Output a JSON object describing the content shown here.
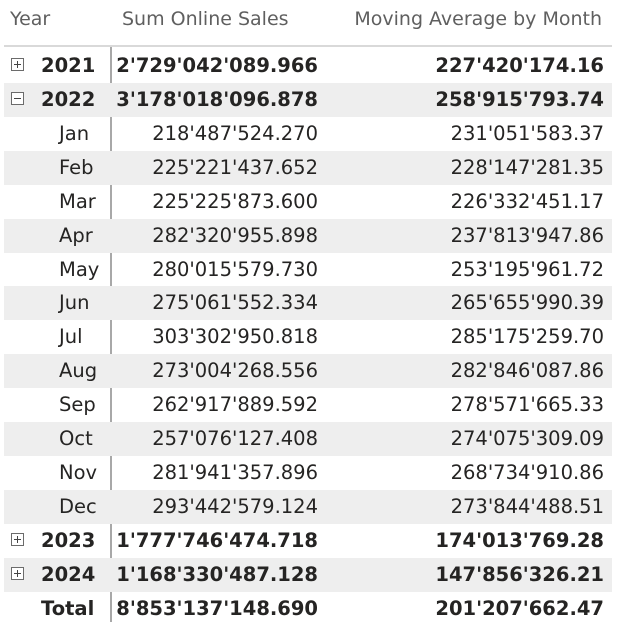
{
  "header": {
    "year": "Year",
    "sum": "Sum Online Sales",
    "moving": "Moving Average by Month"
  },
  "rows": [
    {
      "label": "2021",
      "sum": "2'729'042'089.966",
      "ma": "227'420'174.16"
    },
    {
      "label": "2022",
      "sum": "3'178'018'096.878",
      "ma": "258'915'793.74"
    },
    {
      "label": "Jan",
      "sum": "218'487'524.270",
      "ma": "231'051'583.37"
    },
    {
      "label": "Feb",
      "sum": "225'221'437.652",
      "ma": "228'147'281.35"
    },
    {
      "label": "Mar",
      "sum": "225'225'873.600",
      "ma": "226'332'451.17"
    },
    {
      "label": "Apr",
      "sum": "282'320'955.898",
      "ma": "237'813'947.86"
    },
    {
      "label": "May",
      "sum": "280'015'579.730",
      "ma": "253'195'961.72"
    },
    {
      "label": "Jun",
      "sum": "275'061'552.334",
      "ma": "265'655'990.39"
    },
    {
      "label": "Jul",
      "sum": "303'302'950.818",
      "ma": "285'175'259.70"
    },
    {
      "label": "Aug",
      "sum": "273'004'268.556",
      "ma": "282'846'087.86"
    },
    {
      "label": "Sep",
      "sum": "262'917'889.592",
      "ma": "278'571'665.33"
    },
    {
      "label": "Oct",
      "sum": "257'076'127.408",
      "ma": "274'075'309.09"
    },
    {
      "label": "Nov",
      "sum": "281'941'357.896",
      "ma": "268'734'910.86"
    },
    {
      "label": "Dec",
      "sum": "293'442'579.124",
      "ma": "273'844'488.51"
    },
    {
      "label": "2023",
      "sum": "1'777'746'474.718",
      "ma": "174'013'769.28"
    },
    {
      "label": "2024",
      "sum": "1'168'330'487.128",
      "ma": "147'856'326.21"
    },
    {
      "label": "Total",
      "sum": "8'853'137'148.690",
      "ma": "201'207'662.47"
    }
  ]
}
